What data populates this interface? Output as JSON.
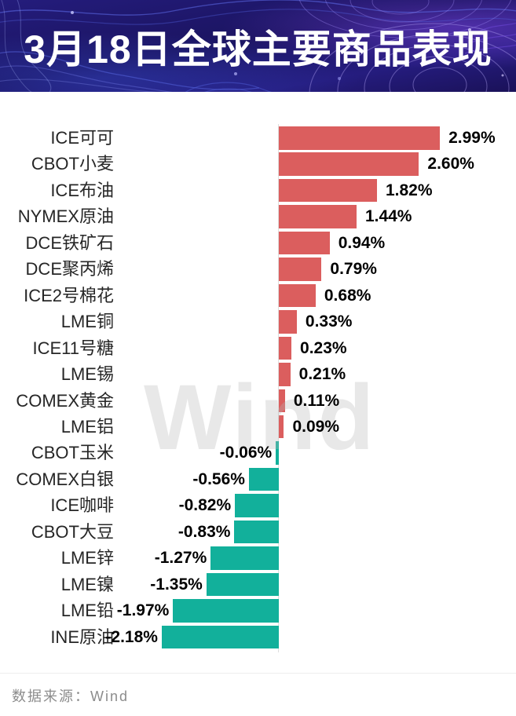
{
  "header": {
    "title": "3月18日全球主要商品表现"
  },
  "watermark_text": "Wind",
  "footer": {
    "source_label": "数据来源：Wind"
  },
  "chart_data": {
    "type": "bar",
    "orientation": "horizontal",
    "title": "3月18日全球主要商品表现",
    "xlabel": "",
    "ylabel": "",
    "xlim": [
      -2.5,
      3.2
    ],
    "grid": false,
    "legend": "none",
    "categories": [
      "ICE可可",
      "CBOT小麦",
      "ICE布油",
      "NYMEX原油",
      "DCE铁矿石",
      "DCE聚丙烯",
      "ICE2号棉花",
      "LME铜",
      "ICE11号糖",
      "LME锡",
      "COMEX黄金",
      "LME铝",
      "CBOT玉米",
      "COMEX白银",
      "ICE咖啡",
      "CBOT大豆",
      "LME锌",
      "LME镍",
      "LME铅",
      "INE原油"
    ],
    "values": [
      2.99,
      2.6,
      1.82,
      1.44,
      0.94,
      0.79,
      0.68,
      0.33,
      0.23,
      0.21,
      0.11,
      0.09,
      -0.06,
      -0.56,
      -0.82,
      -0.83,
      -1.27,
      -1.35,
      -1.97,
      -2.18
    ],
    "value_labels": [
      "2.99%",
      "2.60%",
      "1.82%",
      "1.44%",
      "0.94%",
      "0.79%",
      "0.68%",
      "0.33%",
      "0.23%",
      "0.21%",
      "0.11%",
      "0.09%",
      "-0.06%",
      "-0.56%",
      "-0.82%",
      "-0.83%",
      "-1.27%",
      "-1.35%",
      "-1.97%",
      "-2.18%"
    ],
    "positive_color": "#db5e5e",
    "negative_color": "#12b09b",
    "label_color": "#262626",
    "value_text_color": "#000000"
  }
}
